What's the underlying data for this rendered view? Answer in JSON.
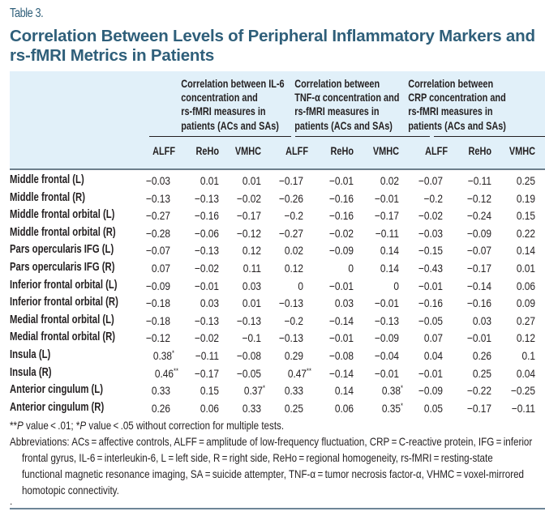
{
  "table_label": "Table 3.",
  "title": "Correlation Between Levels of Peripheral Inflammatory Markers and rs-fMRI Metrics in Patients",
  "colors": {
    "title": "#2f5f7a",
    "header_bg": "#e1f0f9",
    "rule": "#6d7f8c"
  },
  "groups": [
    {
      "lines": [
        "Correlation between IL-6",
        "concentration and",
        "rs-fMRI measures in",
        "patients (ACs and SAs)"
      ]
    },
    {
      "lines": [
        "Correlation between",
        "TNF-α concentration and",
        "rs-fMRI measures in",
        "patients (ACs and SAs)"
      ]
    },
    {
      "lines": [
        "Correlation between",
        "CRP concentration and",
        "rs-fMRI measures in",
        "patients (ACs and SAs)"
      ]
    }
  ],
  "subheaders": [
    "ALFF",
    "ReHo",
    "VMHC",
    "ALFF",
    "ReHo",
    "VMHC",
    "ALFF",
    "ReHo",
    "VMHC"
  ],
  "rows": [
    {
      "label": "Middle frontal (L)",
      "values": [
        "−0.03",
        "0.01",
        "0.01",
        "−0.17",
        "−0.01",
        "0.02",
        "−0.07",
        "−0.11",
        "0.25"
      ],
      "marks": [
        "",
        "",
        "",
        "",
        "",
        "",
        "",
        "",
        ""
      ]
    },
    {
      "label": "Middle frontal (R)",
      "values": [
        "−0.13",
        "−0.13",
        "−0.02",
        "−0.26",
        "−0.16",
        "−0.01",
        "−0.2",
        "−0.12",
        "0.19"
      ],
      "marks": [
        "",
        "",
        "",
        "",
        "",
        "",
        "",
        "",
        ""
      ]
    },
    {
      "label": "Middle frontal orbital (L)",
      "values": [
        "−0.27",
        "−0.16",
        "−0.17",
        "−0.2",
        "−0.16",
        "−0.17",
        "−0.02",
        "−0.24",
        "0.15"
      ],
      "marks": [
        "",
        "",
        "",
        "",
        "",
        "",
        "",
        "",
        ""
      ]
    },
    {
      "label": "Middle frontal orbital (R)",
      "values": [
        "−0.28",
        "−0.06",
        "−0.12",
        "−0.27",
        "−0.02",
        "−0.11",
        "−0.03",
        "−0.09",
        "0.22"
      ],
      "marks": [
        "",
        "",
        "",
        "",
        "",
        "",
        "",
        "",
        ""
      ]
    },
    {
      "label": "Pars opercularis IFG (L)",
      "values": [
        "−0.07",
        "−0.13",
        "0.12",
        "0.02",
        "−0.09",
        "0.14",
        "−0.15",
        "−0.07",
        "0.14"
      ],
      "marks": [
        "",
        "",
        "",
        "",
        "",
        "",
        "",
        "",
        ""
      ]
    },
    {
      "label": "Pars opercularis IFG (R)",
      "values": [
        "0.07",
        "−0.02",
        "0.11",
        "0.12",
        "0",
        "0.14",
        "−0.43",
        "−0.17",
        "0.01"
      ],
      "marks": [
        "",
        "",
        "",
        "",
        "",
        "",
        "",
        "",
        ""
      ]
    },
    {
      "label": "Inferior frontal orbital (L)",
      "values": [
        "−0.09",
        "−0.01",
        "0.03",
        "0",
        "−0.01",
        "0",
        "−0.01",
        "−0.14",
        "0.06"
      ],
      "marks": [
        "",
        "",
        "",
        "",
        "",
        "",
        "",
        "",
        ""
      ]
    },
    {
      "label": "Inferior frontal orbital (R)",
      "values": [
        "−0.18",
        "0.03",
        "0.01",
        "−0.13",
        "0.03",
        "−0.01",
        "−0.16",
        "−0.16",
        "0.09"
      ],
      "marks": [
        "",
        "",
        "",
        "",
        "",
        "",
        "",
        "",
        ""
      ]
    },
    {
      "label": "Medial frontal orbital (L)",
      "values": [
        "−0.18",
        "−0.13",
        "−0.13",
        "−0.2",
        "−0.14",
        "−0.13",
        "−0.05",
        "0.03",
        "0.27"
      ],
      "marks": [
        "",
        "",
        "",
        "",
        "",
        "",
        "",
        "",
        ""
      ]
    },
    {
      "label": "Medial frontal orbital (R)",
      "values": [
        "−0.12",
        "−0.02",
        "−0.1",
        "−0.13",
        "−0.01",
        "−0.09",
        "0.07",
        "−0.01",
        "0.12"
      ],
      "marks": [
        "",
        "",
        "",
        "",
        "",
        "",
        "",
        "",
        ""
      ]
    },
    {
      "label": "Insula (L)",
      "values": [
        "0.38",
        "−0.11",
        "−0.08",
        "0.29",
        "−0.08",
        "−0.04",
        "0.04",
        "0.26",
        "0.1"
      ],
      "marks": [
        "*",
        "",
        "",
        "",
        "",
        "",
        "",
        "",
        ""
      ]
    },
    {
      "label": "Insula (R)",
      "values": [
        "0.46",
        "−0.17",
        "−0.05",
        "0.47",
        "−0.14",
        "−0.01",
        "−0.01",
        "0.25",
        "0.04"
      ],
      "marks": [
        "**",
        "",
        "",
        "**",
        "",
        "",
        "",
        "",
        ""
      ]
    },
    {
      "label": "Anterior cingulum (L)",
      "values": [
        "0.33",
        "0.15",
        "0.37",
        "0.33",
        "0.14",
        "0.38",
        "−0.09",
        "−0.22",
        "−0.25"
      ],
      "marks": [
        "",
        "",
        "*",
        "",
        "",
        "*",
        "",
        "",
        ""
      ]
    },
    {
      "label": "Anterior cingulum (R)",
      "values": [
        "0.26",
        "0.06",
        "0.33",
        "0.25",
        "0.06",
        "0.35",
        "0.05",
        "−0.17",
        "−0.11"
      ],
      "marks": [
        "",
        "",
        "",
        "",
        "",
        "*",
        "",
        "",
        ""
      ]
    }
  ],
  "footnotes": {
    "significance": {
      "p1_stars": "**",
      "p1_italic": "P",
      "p1_text": " value < .01; ",
      "p2_stars": "*",
      "p2_italic": "P",
      "p2_text": " value < .05 without correction for multiple tests."
    },
    "abbreviations": "Abbreviations: ACs = affective controls, ALFF = amplitude of low-frequency fluctuation, CRP = C-reactive protein, IFG = inferior frontal gyrus, IL-6 = interleukin-6, L = left side, R = right side, ReHo = regional homogeneity, rs-fMRI = resting-state functional magnetic resonance imaging, SA = suicide attempter, TNF-α = tumor necrosis factor-α, VHMC = voxel-mirrored homotopic connectivity.",
    "trailing_mark": "."
  }
}
